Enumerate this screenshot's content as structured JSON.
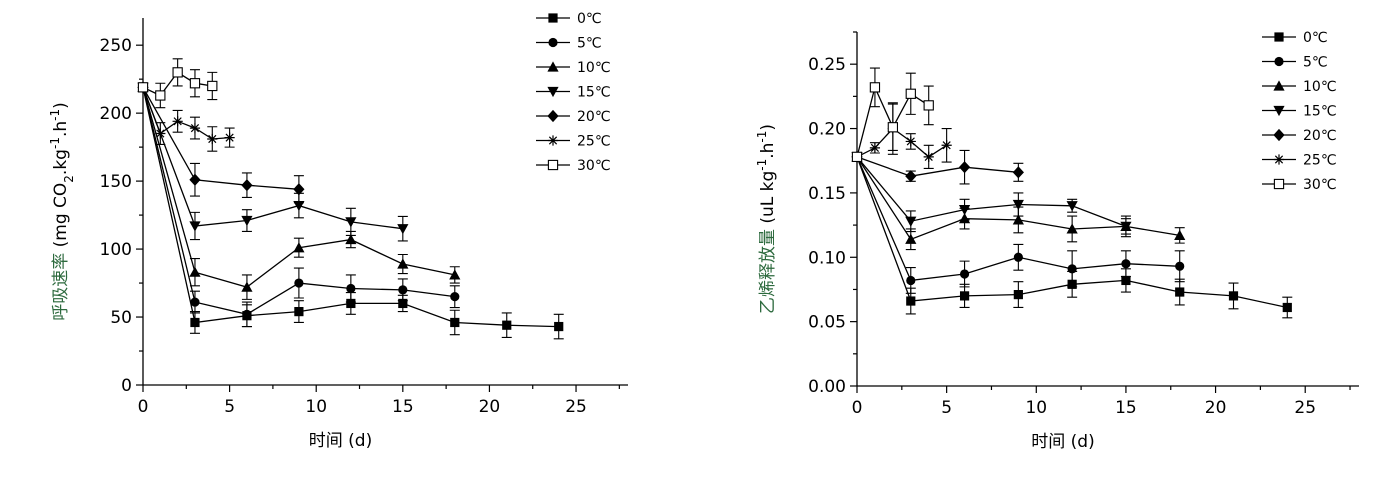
{
  "chart_data": [
    {
      "type": "line",
      "xlabel": "时间 (d)",
      "ylabel": "呼吸速率 (mg CO₂.kg⁻¹.h⁻¹)",
      "ylabel_parts": {
        "main": "呼吸速率",
        "unit": "(mg CO",
        "sub": "2",
        "mid": ".kg",
        "sup1": "-1",
        "mid2": ".h",
        "sup2": "-1",
        "end": ")"
      },
      "xlim": [
        0,
        28
      ],
      "ylim": [
        0,
        270
      ],
      "xticks": [
        0,
        5,
        10,
        15,
        20,
        25
      ],
      "yticks": [
        0,
        50,
        100,
        150,
        200,
        250
      ],
      "ytick_labels": [
        "0",
        "50",
        "100",
        "150",
        "200",
        "250"
      ],
      "legend_position": "top-right",
      "series": [
        {
          "name": "0℃",
          "marker": "square",
          "x": [
            0,
            3,
            6,
            9,
            12,
            15,
            18,
            21,
            24
          ],
          "y": [
            219,
            46,
            51,
            54,
            60,
            60,
            46,
            44,
            43
          ],
          "err": [
            5,
            8,
            8,
            8,
            8,
            6,
            9,
            9,
            9
          ]
        },
        {
          "name": "5℃",
          "marker": "circle",
          "x": [
            0,
            3,
            6,
            9,
            12,
            15,
            18
          ],
          "y": [
            219,
            61,
            52,
            75,
            71,
            70,
            65
          ],
          "err": [
            5,
            8,
            9,
            11,
            10,
            8,
            8
          ]
        },
        {
          "name": "10℃",
          "marker": "triangle-up",
          "x": [
            0,
            3,
            6,
            9,
            12,
            15,
            18
          ],
          "y": [
            219,
            83,
            72,
            101,
            107,
            89,
            81
          ],
          "err": [
            5,
            10,
            9,
            7,
            6,
            7,
            6
          ]
        },
        {
          "name": "15℃",
          "marker": "triangle-down",
          "x": [
            0,
            3,
            6,
            9,
            12,
            15
          ],
          "y": [
            219,
            117,
            121,
            132,
            120,
            115
          ],
          "err": [
            5,
            10,
            8,
            9,
            10,
            9
          ]
        },
        {
          "name": "20℃",
          "marker": "diamond",
          "x": [
            0,
            3,
            6,
            9
          ],
          "y": [
            219,
            151,
            147,
            144
          ],
          "err": [
            5,
            12,
            9,
            10
          ]
        },
        {
          "name": "25℃",
          "marker": "star",
          "x": [
            0,
            1,
            2,
            3,
            4,
            5
          ],
          "y": [
            219,
            185,
            194,
            189,
            181,
            182
          ],
          "err": [
            5,
            8,
            8,
            8,
            9,
            7
          ]
        },
        {
          "name": "30℃",
          "marker": "square-open",
          "x": [
            0,
            1,
            2,
            3,
            4
          ],
          "y": [
            219,
            213,
            230,
            222,
            220
          ],
          "err": [
            5,
            9,
            10,
            10,
            10
          ]
        }
      ]
    },
    {
      "type": "line",
      "xlabel": "时间 (d)",
      "ylabel": "乙烯释放量 (uL kg⁻¹.h⁻¹)",
      "ylabel_parts": {
        "main": "乙烯释放量",
        "unit": "(uL kg",
        "sup1": "-1",
        "mid": ".h",
        "sup2": "-1",
        "end": ")"
      },
      "xlim": [
        0,
        28
      ],
      "ylim": [
        0,
        0.275
      ],
      "xticks": [
        0,
        5,
        10,
        15,
        20,
        25
      ],
      "yticks": [
        0,
        0.05,
        0.1,
        0.15,
        0.2,
        0.25
      ],
      "ytick_labels": [
        "0.00",
        "0.05",
        "0.10",
        "0.15",
        "0.20",
        "0.25"
      ],
      "legend_position": "top-right",
      "series": [
        {
          "name": "0℃",
          "marker": "square",
          "x": [
            0,
            3,
            6,
            9,
            12,
            15,
            18,
            21,
            24
          ],
          "y": [
            0.178,
            0.066,
            0.07,
            0.071,
            0.079,
            0.082,
            0.073,
            0.07,
            0.061
          ],
          "err": [
            0.01,
            0.01,
            0.009,
            0.01,
            0.01,
            0.009,
            0.01,
            0.01,
            0.008
          ]
        },
        {
          "name": "5℃",
          "marker": "circle",
          "x": [
            0,
            3,
            6,
            9,
            12,
            15,
            18
          ],
          "y": [
            0.178,
            0.082,
            0.087,
            0.1,
            0.091,
            0.095,
            0.093
          ],
          "err": [
            0.01,
            0.01,
            0.01,
            0.01,
            0.014,
            0.01,
            0.012
          ]
        },
        {
          "name": "10℃",
          "marker": "triangle-up",
          "x": [
            0,
            3,
            6,
            9,
            12,
            15,
            18
          ],
          "y": [
            0.178,
            0.114,
            0.13,
            0.129,
            0.122,
            0.124,
            0.117
          ],
          "err": [
            0.01,
            0.008,
            0.008,
            0.01,
            0.01,
            0.008,
            0.006
          ]
        },
        {
          "name": "15℃",
          "marker": "triangle-down",
          "x": [
            0,
            3,
            6,
            9,
            12,
            15
          ],
          "y": [
            0.178,
            0.128,
            0.137,
            0.141,
            0.14,
            0.124
          ],
          "err": [
            0.01,
            0.008,
            0.008,
            0.009,
            0.005,
            0.006
          ]
        },
        {
          "name": "20℃",
          "marker": "diamond",
          "x": [
            0,
            3,
            6,
            9
          ],
          "y": [
            0.178,
            0.163,
            0.17,
            0.166
          ],
          "err": [
            0.01,
            0.004,
            0.013,
            0.007
          ]
        },
        {
          "name": "25℃",
          "marker": "star",
          "x": [
            0,
            1,
            2,
            3,
            4,
            5
          ],
          "y": [
            0.178,
            0.185,
            0.2,
            0.19,
            0.178,
            0.187
          ],
          "err": [
            0.01,
            0.004,
            0.02,
            0.006,
            0.009,
            0.013
          ]
        },
        {
          "name": "30℃",
          "marker": "square-open",
          "x": [
            0,
            1,
            2,
            3,
            4
          ],
          "y": [
            0.178,
            0.232,
            0.201,
            0.227,
            0.218
          ],
          "err": [
            0.01,
            0.015,
            0.018,
            0.016,
            0.015
          ]
        }
      ]
    }
  ]
}
